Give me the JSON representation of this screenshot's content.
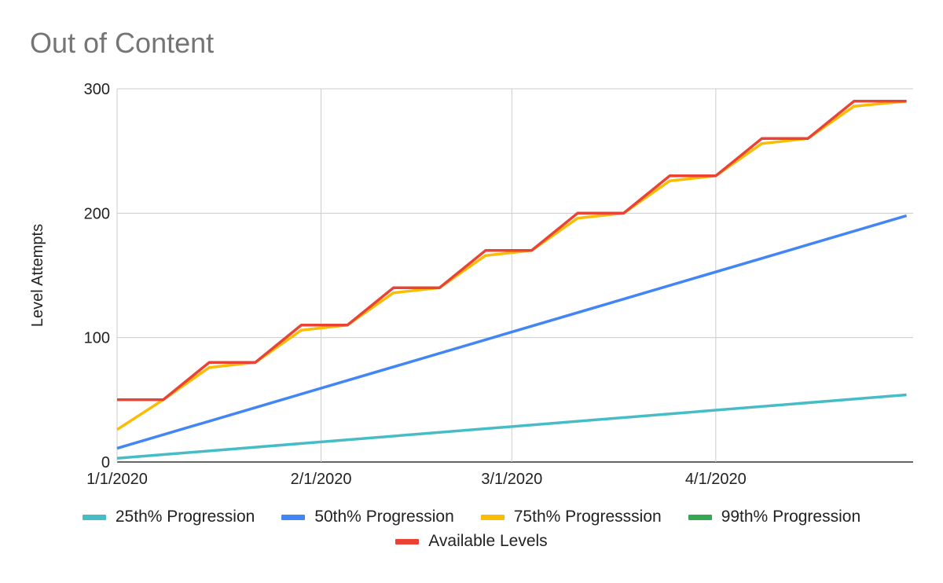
{
  "chart_data": {
    "type": "line",
    "title": "Out of Content",
    "xlabel": "",
    "ylabel": "Level Attempts",
    "x_ticks": [
      "1/1/2020",
      "2/1/2020",
      "3/1/2020",
      "4/1/2020"
    ],
    "xlim": [
      "2020-01-01",
      "2020-04-30"
    ],
    "ylim": [
      0,
      300
    ],
    "y_ticks": [
      0,
      100,
      200,
      300
    ],
    "grid": true,
    "legend_position": "bottom",
    "series": [
      {
        "name": "25th% Progression",
        "color": "#46bdc6",
        "points": [
          [
            "2020-01-01",
            3
          ],
          [
            "2020-04-30",
            54
          ]
        ]
      },
      {
        "name": "50th% Progression",
        "color": "#4285f4",
        "points": [
          [
            "2020-01-01",
            11
          ],
          [
            "2020-04-30",
            198
          ]
        ]
      },
      {
        "name": "75th% Progresssion",
        "color": "#fbbc04",
        "points": [
          [
            "2020-01-01",
            26
          ],
          [
            "2020-01-08",
            50
          ],
          [
            "2020-01-15",
            76
          ],
          [
            "2020-01-22",
            80
          ],
          [
            "2020-01-29",
            106
          ],
          [
            "2020-02-05",
            110
          ],
          [
            "2020-02-12",
            136
          ],
          [
            "2020-02-19",
            140
          ],
          [
            "2020-02-26",
            166
          ],
          [
            "2020-03-04",
            170
          ],
          [
            "2020-03-11",
            196
          ],
          [
            "2020-03-18",
            200
          ],
          [
            "2020-03-25",
            226
          ],
          [
            "2020-04-01",
            230
          ],
          [
            "2020-04-08",
            256
          ],
          [
            "2020-04-15",
            260
          ],
          [
            "2020-04-22",
            286
          ],
          [
            "2020-04-30",
            290
          ]
        ]
      },
      {
        "name": "99th% Progression",
        "color": "#34a853",
        "points": []
      },
      {
        "name": "Available Levels",
        "color": "#ea4335",
        "points": [
          [
            "2020-01-01",
            50
          ],
          [
            "2020-01-08",
            50
          ],
          [
            "2020-01-15",
            80
          ],
          [
            "2020-01-22",
            80
          ],
          [
            "2020-01-29",
            110
          ],
          [
            "2020-02-05",
            110
          ],
          [
            "2020-02-12",
            140
          ],
          [
            "2020-02-19",
            140
          ],
          [
            "2020-02-26",
            170
          ],
          [
            "2020-03-04",
            170
          ],
          [
            "2020-03-11",
            200
          ],
          [
            "2020-03-18",
            200
          ],
          [
            "2020-03-25",
            230
          ],
          [
            "2020-04-01",
            230
          ],
          [
            "2020-04-08",
            260
          ],
          [
            "2020-04-15",
            260
          ],
          [
            "2020-04-22",
            290
          ],
          [
            "2020-04-30",
            290
          ]
        ]
      }
    ]
  }
}
